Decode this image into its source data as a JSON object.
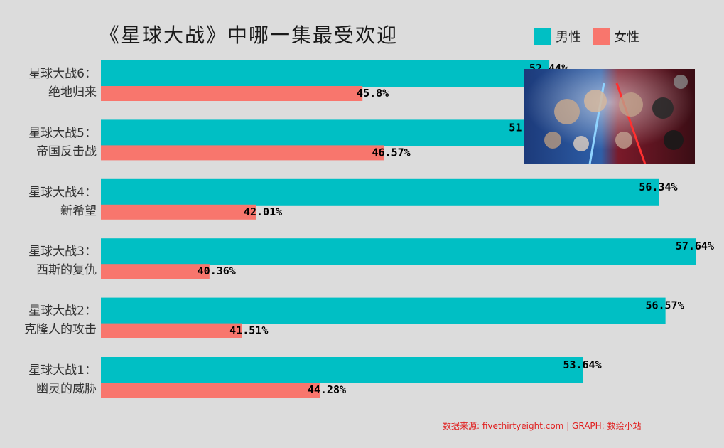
{
  "title": "《星球大战》中哪一集最受欢迎",
  "legend": [
    {
      "name": "男性",
      "color": "#00bfc4"
    },
    {
      "name": "女性",
      "color": "#f8766d"
    }
  ],
  "source": "数据来源: fivethirtyeight.com | GRAPH: 数绘小站",
  "chart_data": {
    "type": "bar",
    "orientation": "horizontal",
    "categories": [
      [
        "星球大战6：",
        "绝地归来"
      ],
      [
        "星球大战5：",
        "帝国反击战"
      ],
      [
        "星球大战4：",
        "新希望"
      ],
      [
        "星球大战3：",
        "西斯的复仇"
      ],
      [
        "星球大战2：",
        "克隆人的攻击"
      ],
      [
        "星球大战1：",
        "幽灵的威胁"
      ]
    ],
    "series": [
      {
        "name": "男性",
        "color": "#00bfc4",
        "values": [
          52.44,
          51.72,
          56.34,
          57.64,
          56.57,
          53.64
        ],
        "labels": [
          "52.44%",
          "51.72%",
          "56.34%",
          "57.64%",
          "56.57%",
          "53.64%"
        ]
      },
      {
        "name": "女性",
        "color": "#f8766d",
        "values": [
          45.8,
          46.57,
          42.01,
          40.36,
          41.51,
          44.28
        ],
        "labels": [
          "45.8%",
          "46.57%",
          "42.01%",
          "40.36%",
          "41.51%",
          "44.28%"
        ]
      }
    ],
    "xlim": [
      36.5,
      57.64
    ],
    "grid": false,
    "legend_position": "top-right"
  },
  "image": {
    "description_icon": "star-wars-poster-icon"
  }
}
